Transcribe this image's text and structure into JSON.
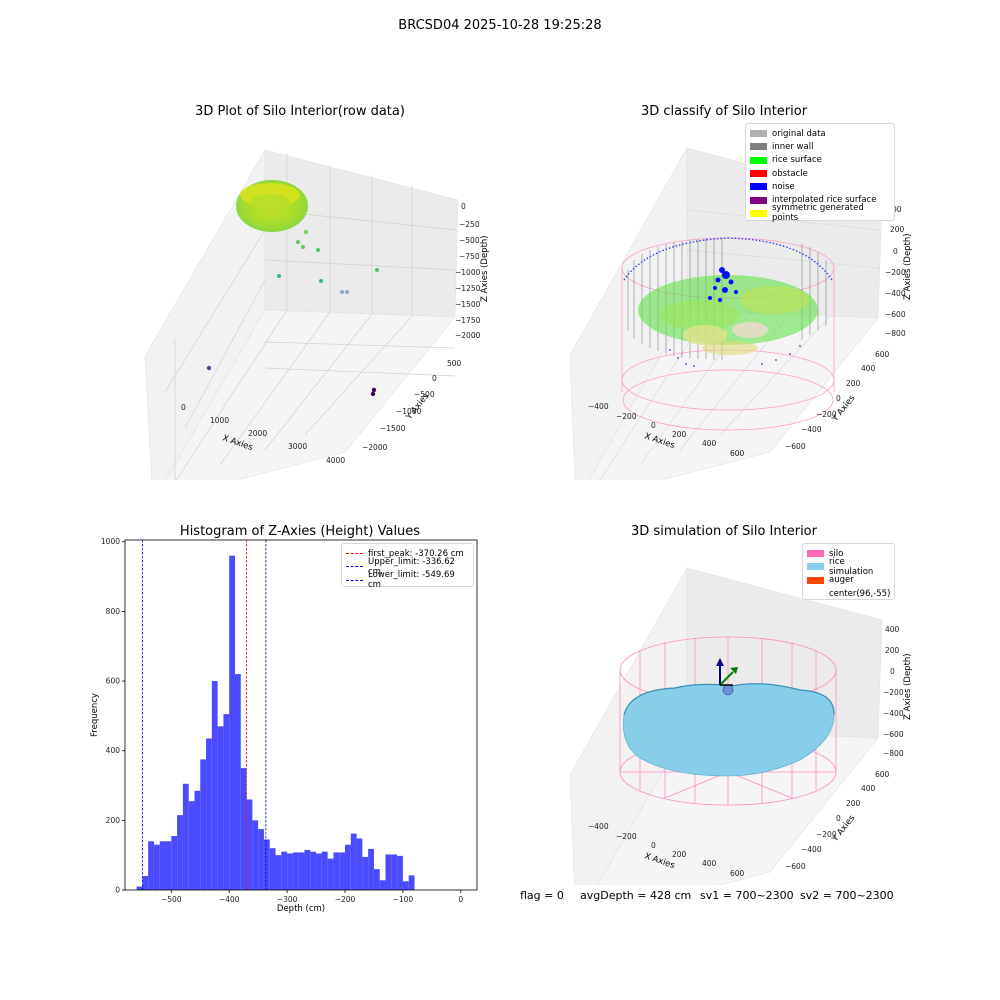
{
  "suptitle": "BRCSD04 2025-10-28 19:25:28",
  "panel1": {
    "title": "3D Plot of Silo Interior(row data)",
    "xlabel": "X Axies",
    "ylabel": "Y Axies",
    "zlabel": "Z Axies (Depth)",
    "xticks": [
      "0",
      "1000",
      "2000",
      "3000",
      "4000"
    ],
    "yticks": [
      "500",
      "0",
      "−500",
      "−1000",
      "−1500",
      "−2000"
    ],
    "zticks": [
      "0",
      "−250",
      "−500",
      "−750",
      "−1000",
      "−1250",
      "−1500",
      "−1750",
      "−2000"
    ]
  },
  "panel2": {
    "title": "3D classify of Silo Interior",
    "xlabel": "X Axies",
    "ylabel": "Y Axies",
    "zlabel": "Z Axies (Depth)",
    "xticks": [
      "−400",
      "−200",
      "0",
      "200",
      "400",
      "600"
    ],
    "yticks": [
      "600",
      "400",
      "200",
      "0",
      "−200",
      "−400",
      "−600"
    ],
    "zticks": [
      "200",
      "0",
      "−200",
      "−400",
      "−600",
      "−800"
    ],
    "legend": [
      {
        "label": "original data",
        "color": "#b0b0b0"
      },
      {
        "label": "inner wall",
        "color": "#808080"
      },
      {
        "label": "rice surface",
        "color": "#00ff00"
      },
      {
        "label": "obstacle",
        "color": "#ff0000"
      },
      {
        "label": "noise",
        "color": "#0000ff"
      },
      {
        "label": "interpolated rice surface",
        "color": "#800080"
      },
      {
        "label": "symmetric generated points",
        "color": "#ffff00"
      }
    ],
    "extra_ztick": "00"
  },
  "panel4": {
    "title": "3D simulation of Silo Interior",
    "xlabel": "X Axies",
    "ylabel": "Y Axies",
    "zlabel": "Z Axies (Depth)",
    "xticks": [
      "−400",
      "−200",
      "0",
      "200",
      "400",
      "600"
    ],
    "yticks": [
      "600",
      "400",
      "200",
      "0",
      "−200",
      "−400",
      "−600"
    ],
    "zticks": [
      "400",
      "200",
      "0",
      "−200",
      "−400",
      "−600",
      "−800"
    ],
    "legend": [
      {
        "label": "silo",
        "color": "#ff69b4"
      },
      {
        "label": "rice simulation",
        "color": "#87ceeb"
      },
      {
        "label": "auger",
        "color": "#ff4500"
      },
      {
        "label": "center(96,-55)",
        "color": "#ffffff"
      }
    ]
  },
  "status": {
    "flag": "flag = 0",
    "avg": "avgDepth = 428 cm",
    "sv1": "sv1 = 700~2300",
    "sv2": "sv2 = 700~2300"
  },
  "chart_data": [
    {
      "type": "scatter",
      "title": "3D Plot of Silo Interior(row data)",
      "xlabel": "X Axies",
      "ylabel": "Y Axies",
      "zlabel": "Z Axies (Depth)",
      "xlim": [
        -500,
        4000
      ],
      "ylim": [
        -2200,
        700
      ],
      "zlim": [
        -2050,
        150
      ]
    },
    {
      "type": "scatter",
      "title": "3D classify of Silo Interior",
      "xlabel": "X Axies",
      "ylabel": "Y Axies",
      "zlabel": "Z Axies (Depth)",
      "series": [
        {
          "name": "original data"
        },
        {
          "name": "inner wall"
        },
        {
          "name": "rice surface"
        },
        {
          "name": "obstacle"
        },
        {
          "name": "noise"
        },
        {
          "name": "interpolated rice surface"
        },
        {
          "name": "symmetric generated points"
        }
      ]
    },
    {
      "type": "bar",
      "title": "Histogram of Z-Axies (Height) Values",
      "xlabel": "Depth (cm)",
      "ylabel": "Frequency",
      "xlim": [
        -580,
        28
      ],
      "ylim": [
        0,
        1005
      ],
      "bar_color": "#4a4aff",
      "bin_start": -560,
      "bin_width": 10,
      "values": [
        10,
        40,
        140,
        130,
        140,
        140,
        155,
        215,
        305,
        255,
        285,
        375,
        435,
        600,
        470,
        505,
        960,
        620,
        350,
        260,
        200,
        175,
        145,
        120,
        100,
        110,
        105,
        108,
        108,
        115,
        110,
        105,
        110,
        90,
        108,
        108,
        130,
        162,
        148,
        95,
        118,
        60,
        28,
        102,
        102,
        98,
        25,
        42
      ],
      "xticks": [
        "−500",
        "−400",
        "−300",
        "−200",
        "−100",
        "0"
      ],
      "xtick_values": [
        -500,
        -400,
        -300,
        -200,
        -100,
        0
      ],
      "yticks": [
        "0",
        "200",
        "400",
        "600",
        "800",
        "1000"
      ],
      "ytick_values": [
        0,
        200,
        400,
        600,
        800,
        1000
      ],
      "vlines": [
        {
          "label": "first_peak: -370.26 cm",
          "x": -370.26,
          "color": "#ff0000"
        },
        {
          "label": "Upper_limit: -336.62 cm",
          "x": -336.62,
          "color": "#0000cc"
        },
        {
          "label": "Lower_limit: -549.69 cm",
          "x": -549.69,
          "color": "#0000cc"
        }
      ]
    },
    {
      "type": "area",
      "title": "3D simulation of Silo Interior",
      "xlabel": "X Axies",
      "ylabel": "Y Axies",
      "zlabel": "Z Axies (Depth)",
      "series": [
        {
          "name": "silo"
        },
        {
          "name": "rice simulation"
        },
        {
          "name": "auger"
        },
        {
          "name": "center(96,-55)"
        }
      ]
    }
  ]
}
